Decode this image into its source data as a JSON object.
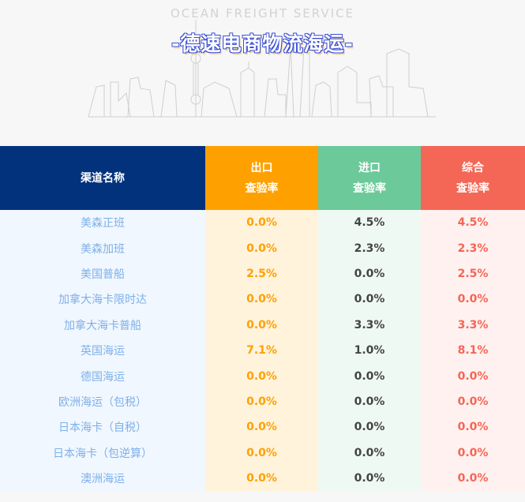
{
  "banner": {
    "subtitle": "OCEAN FREIGHT SERVICE",
    "title": "-德速电商物流海运-"
  },
  "colors": {
    "channel_header": "#03327c",
    "export": "#fea100",
    "import": "#6cc99a",
    "overall": "#f46655",
    "channel_text": "#7fb0e8"
  },
  "table": {
    "headers": [
      {
        "line1": "渠道名称",
        "line2": ""
      },
      {
        "line1": "出口",
        "line2": "查验率"
      },
      {
        "line1": "进口",
        "line2": "查验率"
      },
      {
        "line1": "综合",
        "line2": "查验率"
      }
    ],
    "rows": [
      [
        "美森正班",
        "0.0%",
        "4.5%",
        "4.5%"
      ],
      [
        "美森加班",
        "0.0%",
        "2.3%",
        "2.3%"
      ],
      [
        "美国普船",
        "2.5%",
        "0.0%",
        "2.5%"
      ],
      [
        "加拿大海卡限时达",
        "0.0%",
        "0.0%",
        "0.0%"
      ],
      [
        "加拿大海卡普船",
        "0.0%",
        "3.3%",
        "3.3%"
      ],
      [
        "英国海运",
        "7.1%",
        "1.0%",
        "8.1%"
      ],
      [
        "德国海运",
        "0.0%",
        "0.0%",
        "0.0%"
      ],
      [
        "欧洲海运（包税）",
        "0.0%",
        "0.0%",
        "0.0%"
      ],
      [
        "日本海卡（自税）",
        "0.0%",
        "0.0%",
        "0.0%"
      ],
      [
        "日本海卡（包逆算）",
        "0.0%",
        "0.0%",
        "0.0%"
      ],
      [
        "澳洲海运",
        "0.0%",
        "0.0%",
        "0.0%"
      ]
    ]
  }
}
